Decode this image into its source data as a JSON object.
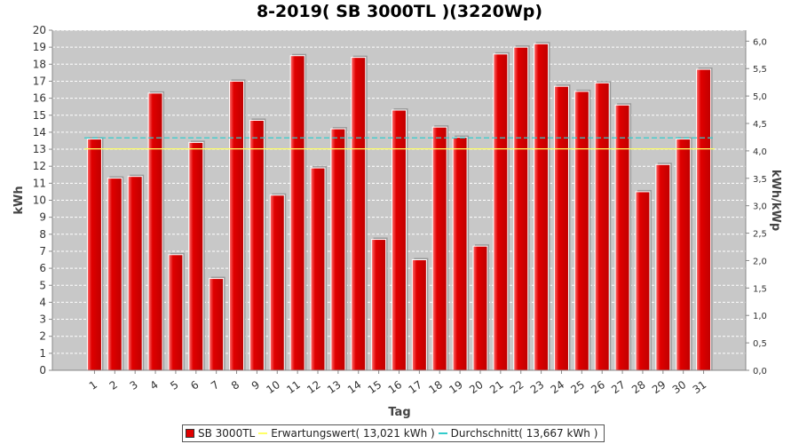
{
  "chart_data": {
    "type": "bar",
    "title": "8-2019( SB 3000TL )(3220Wp)",
    "xlabel": "Tag",
    "ylabel": "kWh",
    "ylabel_right": "kWh/kWp",
    "ylim": [
      0,
      20
    ],
    "ylim_right": [
      0,
      6.2
    ],
    "y_ticks": [
      "0",
      "1",
      "2",
      "3",
      "4",
      "5",
      "6",
      "7",
      "8",
      "9",
      "10",
      "11",
      "12",
      "13",
      "14",
      "15",
      "16",
      "17",
      "18",
      "19",
      "20"
    ],
    "y_ticks_right": [
      "0,0",
      "0,5",
      "1,0",
      "1,5",
      "2,0",
      "2,5",
      "3,0",
      "3,5",
      "4,0",
      "4,5",
      "5,0",
      "5,5",
      "6,0"
    ],
    "categories": [
      "1",
      "2",
      "3",
      "4",
      "5",
      "6",
      "7",
      "8",
      "9",
      "10",
      "11",
      "12",
      "13",
      "14",
      "15",
      "16",
      "17",
      "18",
      "19",
      "20",
      "21",
      "22",
      "23",
      "24",
      "25",
      "26",
      "27",
      "28",
      "29",
      "30",
      "31"
    ],
    "series": [
      {
        "name": "SB 3000TL",
        "values": [
          13.6,
          11.3,
          11.4,
          16.3,
          6.8,
          13.4,
          5.4,
          17.0,
          14.7,
          10.3,
          18.5,
          11.9,
          14.2,
          18.4,
          7.7,
          15.3,
          6.5,
          14.3,
          13.7,
          7.3,
          18.6,
          19.0,
          19.2,
          16.7,
          16.4,
          16.9,
          15.6,
          10.5,
          12.1,
          13.6,
          17.7
        ]
      }
    ],
    "reference_lines": [
      {
        "name": "Erwartungswert( 13,021 kWh )",
        "value": 13.021
      },
      {
        "name": "Durchschnitt( 13,667 kWh )",
        "value": 13.667
      }
    ],
    "colors": {
      "bar": "#e00000",
      "plot_bg": "#c8c8c8",
      "expected_line": "#ffff66",
      "average_line": "#33cccc",
      "grid": "#ffffff"
    },
    "legend_position": "bottom",
    "grid": true
  }
}
